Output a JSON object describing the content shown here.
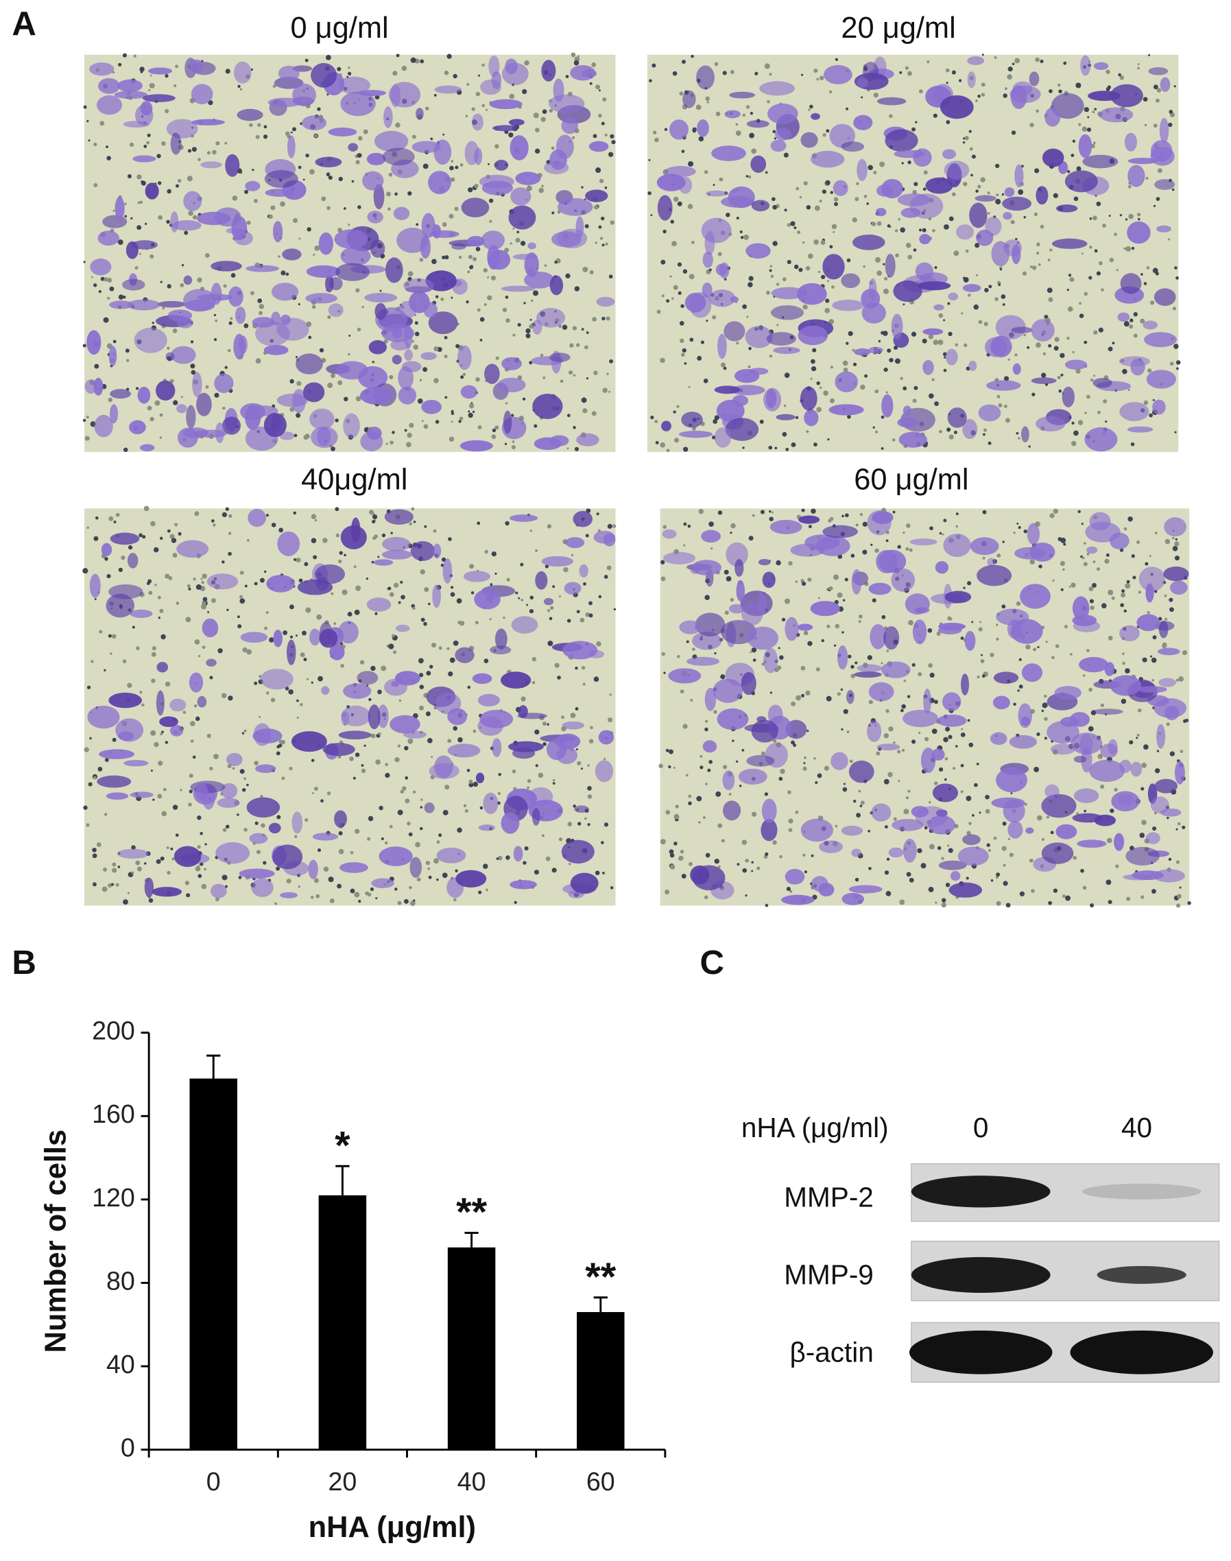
{
  "panels": {
    "A": {
      "label": "A",
      "images": [
        {
          "caption": "0 μg/ml"
        },
        {
          "caption": "20 μg/ml"
        },
        {
          "caption": "40μg/ml"
        },
        {
          "caption": "60 μg/ml"
        }
      ]
    },
    "B": {
      "label": "B"
    },
    "C": {
      "label": "C",
      "header": "nHA (μg/ml)",
      "lanes": [
        "0",
        "40"
      ],
      "rows": [
        "MMP-2",
        "MMP-9",
        "β-actin"
      ]
    }
  },
  "chart_data": {
    "type": "bar",
    "categories": [
      "0",
      "20",
      "40",
      "60"
    ],
    "values": [
      178,
      122,
      97,
      66
    ],
    "errors": [
      11,
      14,
      7,
      7
    ],
    "significance": [
      null,
      "*",
      "**",
      "**"
    ],
    "color": "#000000",
    "x_label": "nHA (μg/ml)",
    "y_label": "Number of cells",
    "ylim": [
      0,
      200
    ],
    "yticks": [
      0,
      40,
      80,
      120,
      160,
      200
    ]
  }
}
